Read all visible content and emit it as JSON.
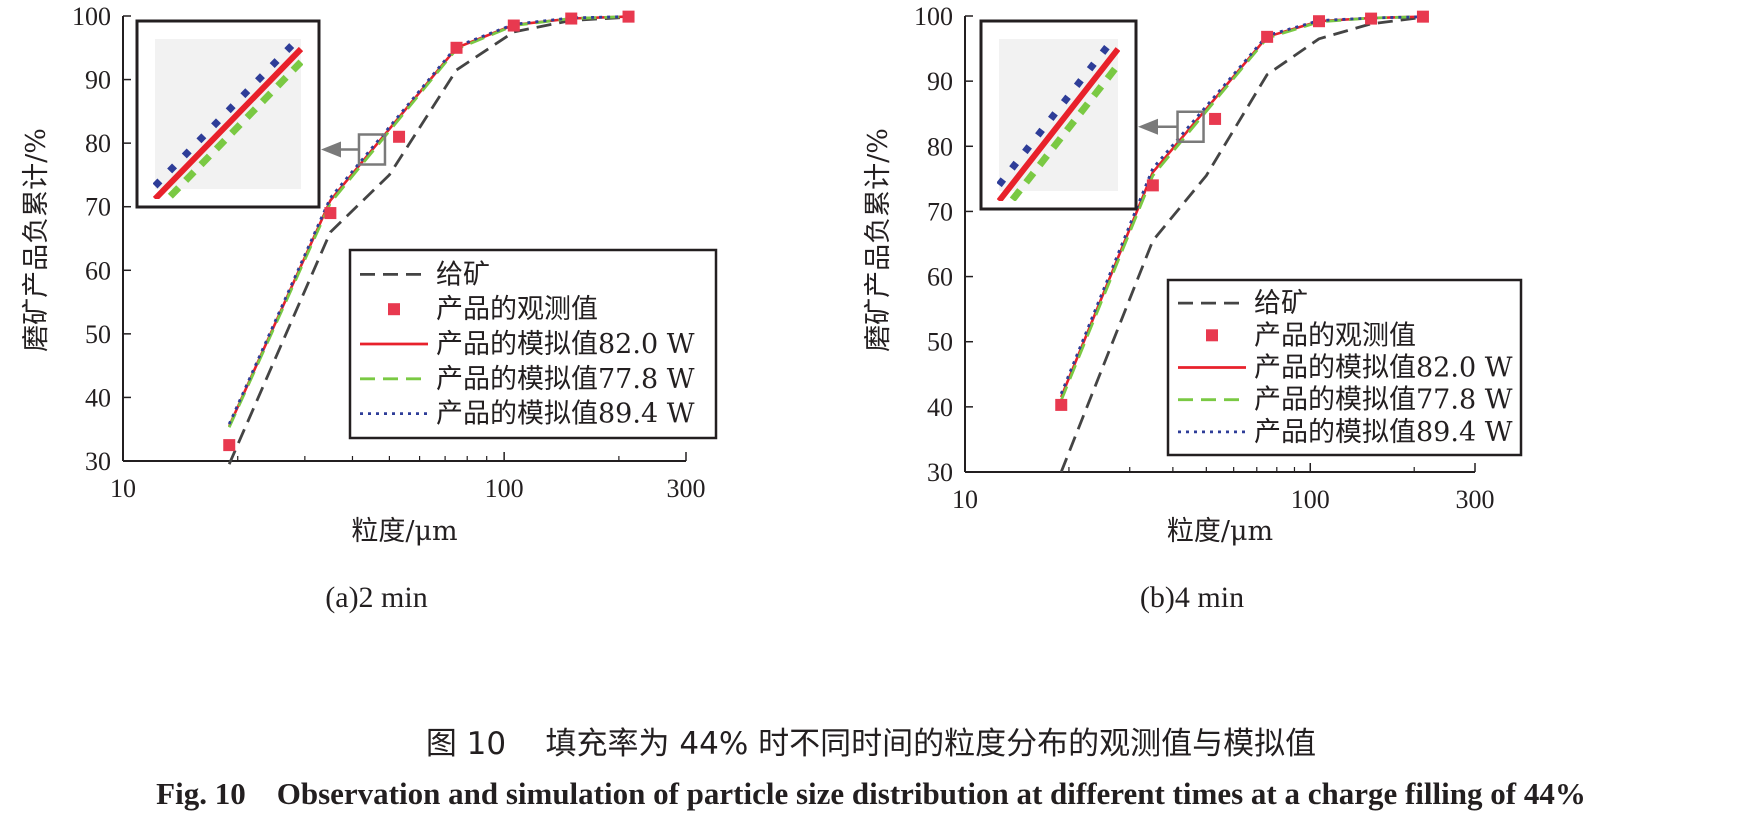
{
  "chart_data": [
    {
      "type": "line",
      "subtitle": "(a)2 min",
      "xlabel": "粒度/μm",
      "ylabel": "磨矿产品负累计/%",
      "xscale": "log",
      "xlim": [
        10,
        300
      ],
      "ylim": [
        30,
        100
      ],
      "xticks": [
        10,
        100,
        300
      ],
      "yticks": [
        30,
        40,
        50,
        60,
        70,
        80,
        90,
        100
      ],
      "legend_position": "lower-right",
      "inset": {
        "zoom_center": [
          45,
          79
        ],
        "position": "top-left"
      },
      "series": [
        {
          "name": "给矿",
          "style": "dashed",
          "color": "#444444",
          "x": [
            19,
            35,
            50,
            75,
            106,
            150,
            212
          ],
          "y": [
            29.5,
            66,
            75,
            91.5,
            97.5,
            99.3,
            99.8
          ]
        },
        {
          "name": "产品的观测值",
          "style": "marker",
          "color": "#e8394f",
          "x": [
            19,
            35,
            53,
            75,
            106,
            150,
            212
          ],
          "y": [
            32.5,
            69,
            81,
            95,
            98.5,
            99.6,
            99.9
          ]
        },
        {
          "name": "产品的模拟值82.0 W",
          "style": "solid",
          "color": "#e8212b",
          "x": [
            19,
            35,
            75,
            106,
            150,
            212
          ],
          "y": [
            35.5,
            71,
            95,
            98.6,
            99.6,
            99.9
          ]
        },
        {
          "name": "产品的模拟值77.8 W",
          "style": "dashed",
          "color": "#7ac943",
          "x": [
            19,
            35,
            75,
            106,
            150,
            212
          ],
          "y": [
            35.3,
            70.6,
            94.8,
            98.5,
            99.6,
            99.9
          ]
        },
        {
          "name": "产品的模拟值89.4 W",
          "style": "dotted",
          "color": "#2e3d98",
          "x": [
            19,
            35,
            75,
            106,
            150,
            212
          ],
          "y": [
            35.8,
            71.4,
            95.2,
            98.7,
            99.7,
            99.9
          ]
        }
      ]
    },
    {
      "type": "line",
      "subtitle": "(b)4 min",
      "xlabel": "粒度/μm",
      "ylabel": "磨矿产品负累计/%",
      "xscale": "log",
      "xlim": [
        10,
        300
      ],
      "ylim": [
        30,
        100
      ],
      "xticks": [
        10,
        100,
        300
      ],
      "yticks": [
        30,
        40,
        50,
        60,
        70,
        80,
        90,
        100
      ],
      "legend_position": "lower-right",
      "inset": {
        "zoom_center": [
          45,
          83
        ],
        "position": "top-left"
      },
      "series": [
        {
          "name": "给矿",
          "style": "dashed",
          "color": "#444444",
          "x": [
            19,
            35,
            50,
            75,
            106,
            150,
            212
          ],
          "y": [
            30,
            65.5,
            75.5,
            91,
            96.5,
            98.8,
            99.8
          ]
        },
        {
          "name": "产品的观测值",
          "style": "marker",
          "color": "#e8394f",
          "x": [
            19,
            35,
            53,
            75,
            106,
            150,
            212
          ],
          "y": [
            40.3,
            74,
            84.2,
            96.8,
            99.2,
            99.6,
            99.9
          ]
        },
        {
          "name": "产品的模拟值82.0 W",
          "style": "solid",
          "color": "#e8212b",
          "x": [
            19,
            35,
            75,
            106,
            150,
            212
          ],
          "y": [
            41.5,
            76,
            96.8,
            99.2,
            99.7,
            99.9
          ]
        },
        {
          "name": "产品的模拟值77.8 W",
          "style": "dashed",
          "color": "#7ac943",
          "x": [
            19,
            35,
            75,
            106,
            150,
            212
          ],
          "y": [
            41.0,
            75.5,
            96.6,
            99.1,
            99.7,
            99.9
          ]
        },
        {
          "name": "产品的模拟值89.4 W",
          "style": "dotted",
          "color": "#2e3d98",
          "x": [
            19,
            35,
            75,
            106,
            150,
            212
          ],
          "y": [
            42.0,
            76.6,
            97.0,
            99.3,
            99.7,
            99.9
          ]
        }
      ]
    }
  ],
  "caption": {
    "cn": "图 10    填充率为 44% 时不同时间的粒度分布的观测值与模拟值",
    "en": "Fig. 10    Observation and simulation of particle size distribution at different times at a charge filling of 44%"
  }
}
